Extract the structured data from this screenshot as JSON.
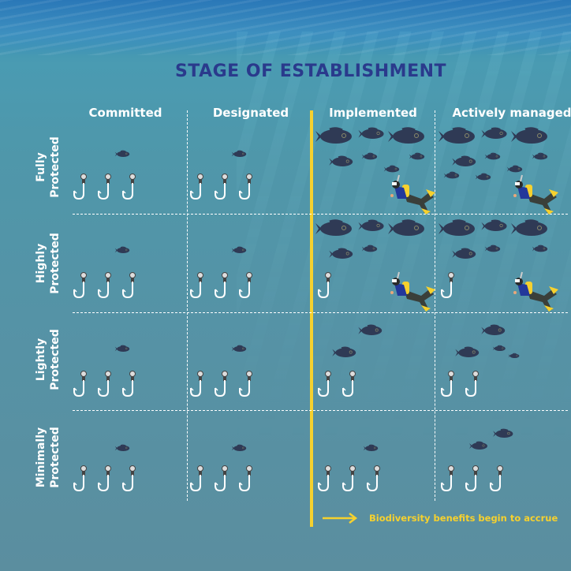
{
  "title": "STAGE OF ESTABLISHMENT",
  "columns": [
    "Committed",
    "Designated",
    "Implemented",
    "Actively managed"
  ],
  "rows": [
    {
      "line1": "Fully",
      "line2": "Protected"
    },
    {
      "line1": "Highly",
      "line2": "Protected"
    },
    {
      "line1": "Lightly",
      "line2": "Protected"
    },
    {
      "line1": "Minimally",
      "line2": "Protected"
    }
  ],
  "legend": {
    "label": "Biodiversity benefits begin to accrue",
    "icon": "arrow-right-icon",
    "color": "#f6d12e"
  },
  "colors": {
    "title": "#2a3a8c",
    "fish": "#2f3a55",
    "diver_tank": "#f6d12e",
    "divider_accent": "#f6d12e"
  },
  "cells": [
    [
      {
        "large_fish": 0,
        "small_fish": 1,
        "hooks": 3,
        "diver": false
      },
      {
        "large_fish": 0,
        "small_fish": 1,
        "hooks": 3,
        "diver": false
      },
      {
        "large_fish": 3,
        "small_fish": 4,
        "hooks": 0,
        "diver": true
      },
      {
        "large_fish": 3,
        "small_fish": 6,
        "hooks": 0,
        "diver": true
      }
    ],
    [
      {
        "large_fish": 0,
        "small_fish": 1,
        "hooks": 3,
        "diver": false
      },
      {
        "large_fish": 0,
        "small_fish": 1,
        "hooks": 3,
        "diver": false
      },
      {
        "large_fish": 3,
        "small_fish": 2,
        "hooks": 1,
        "diver": true
      },
      {
        "large_fish": 3,
        "small_fish": 3,
        "hooks": 1,
        "diver": true
      }
    ],
    [
      {
        "large_fish": 0,
        "small_fish": 1,
        "hooks": 3,
        "diver": false
      },
      {
        "large_fish": 0,
        "small_fish": 1,
        "hooks": 3,
        "diver": false
      },
      {
        "large_fish": 2,
        "small_fish": 0,
        "hooks": 2,
        "diver": false
      },
      {
        "large_fish": 2,
        "small_fish": 2,
        "hooks": 2,
        "diver": false
      }
    ],
    [
      {
        "large_fish": 0,
        "small_fish": 1,
        "hooks": 3,
        "diver": false
      },
      {
        "large_fish": 0,
        "small_fish": 1,
        "hooks": 3,
        "diver": false
      },
      {
        "large_fish": 0,
        "small_fish": 1,
        "hooks": 3,
        "diver": false
      },
      {
        "large_fish": 0,
        "small_fish": 2,
        "hooks": 3,
        "diver": false
      }
    ]
  ]
}
